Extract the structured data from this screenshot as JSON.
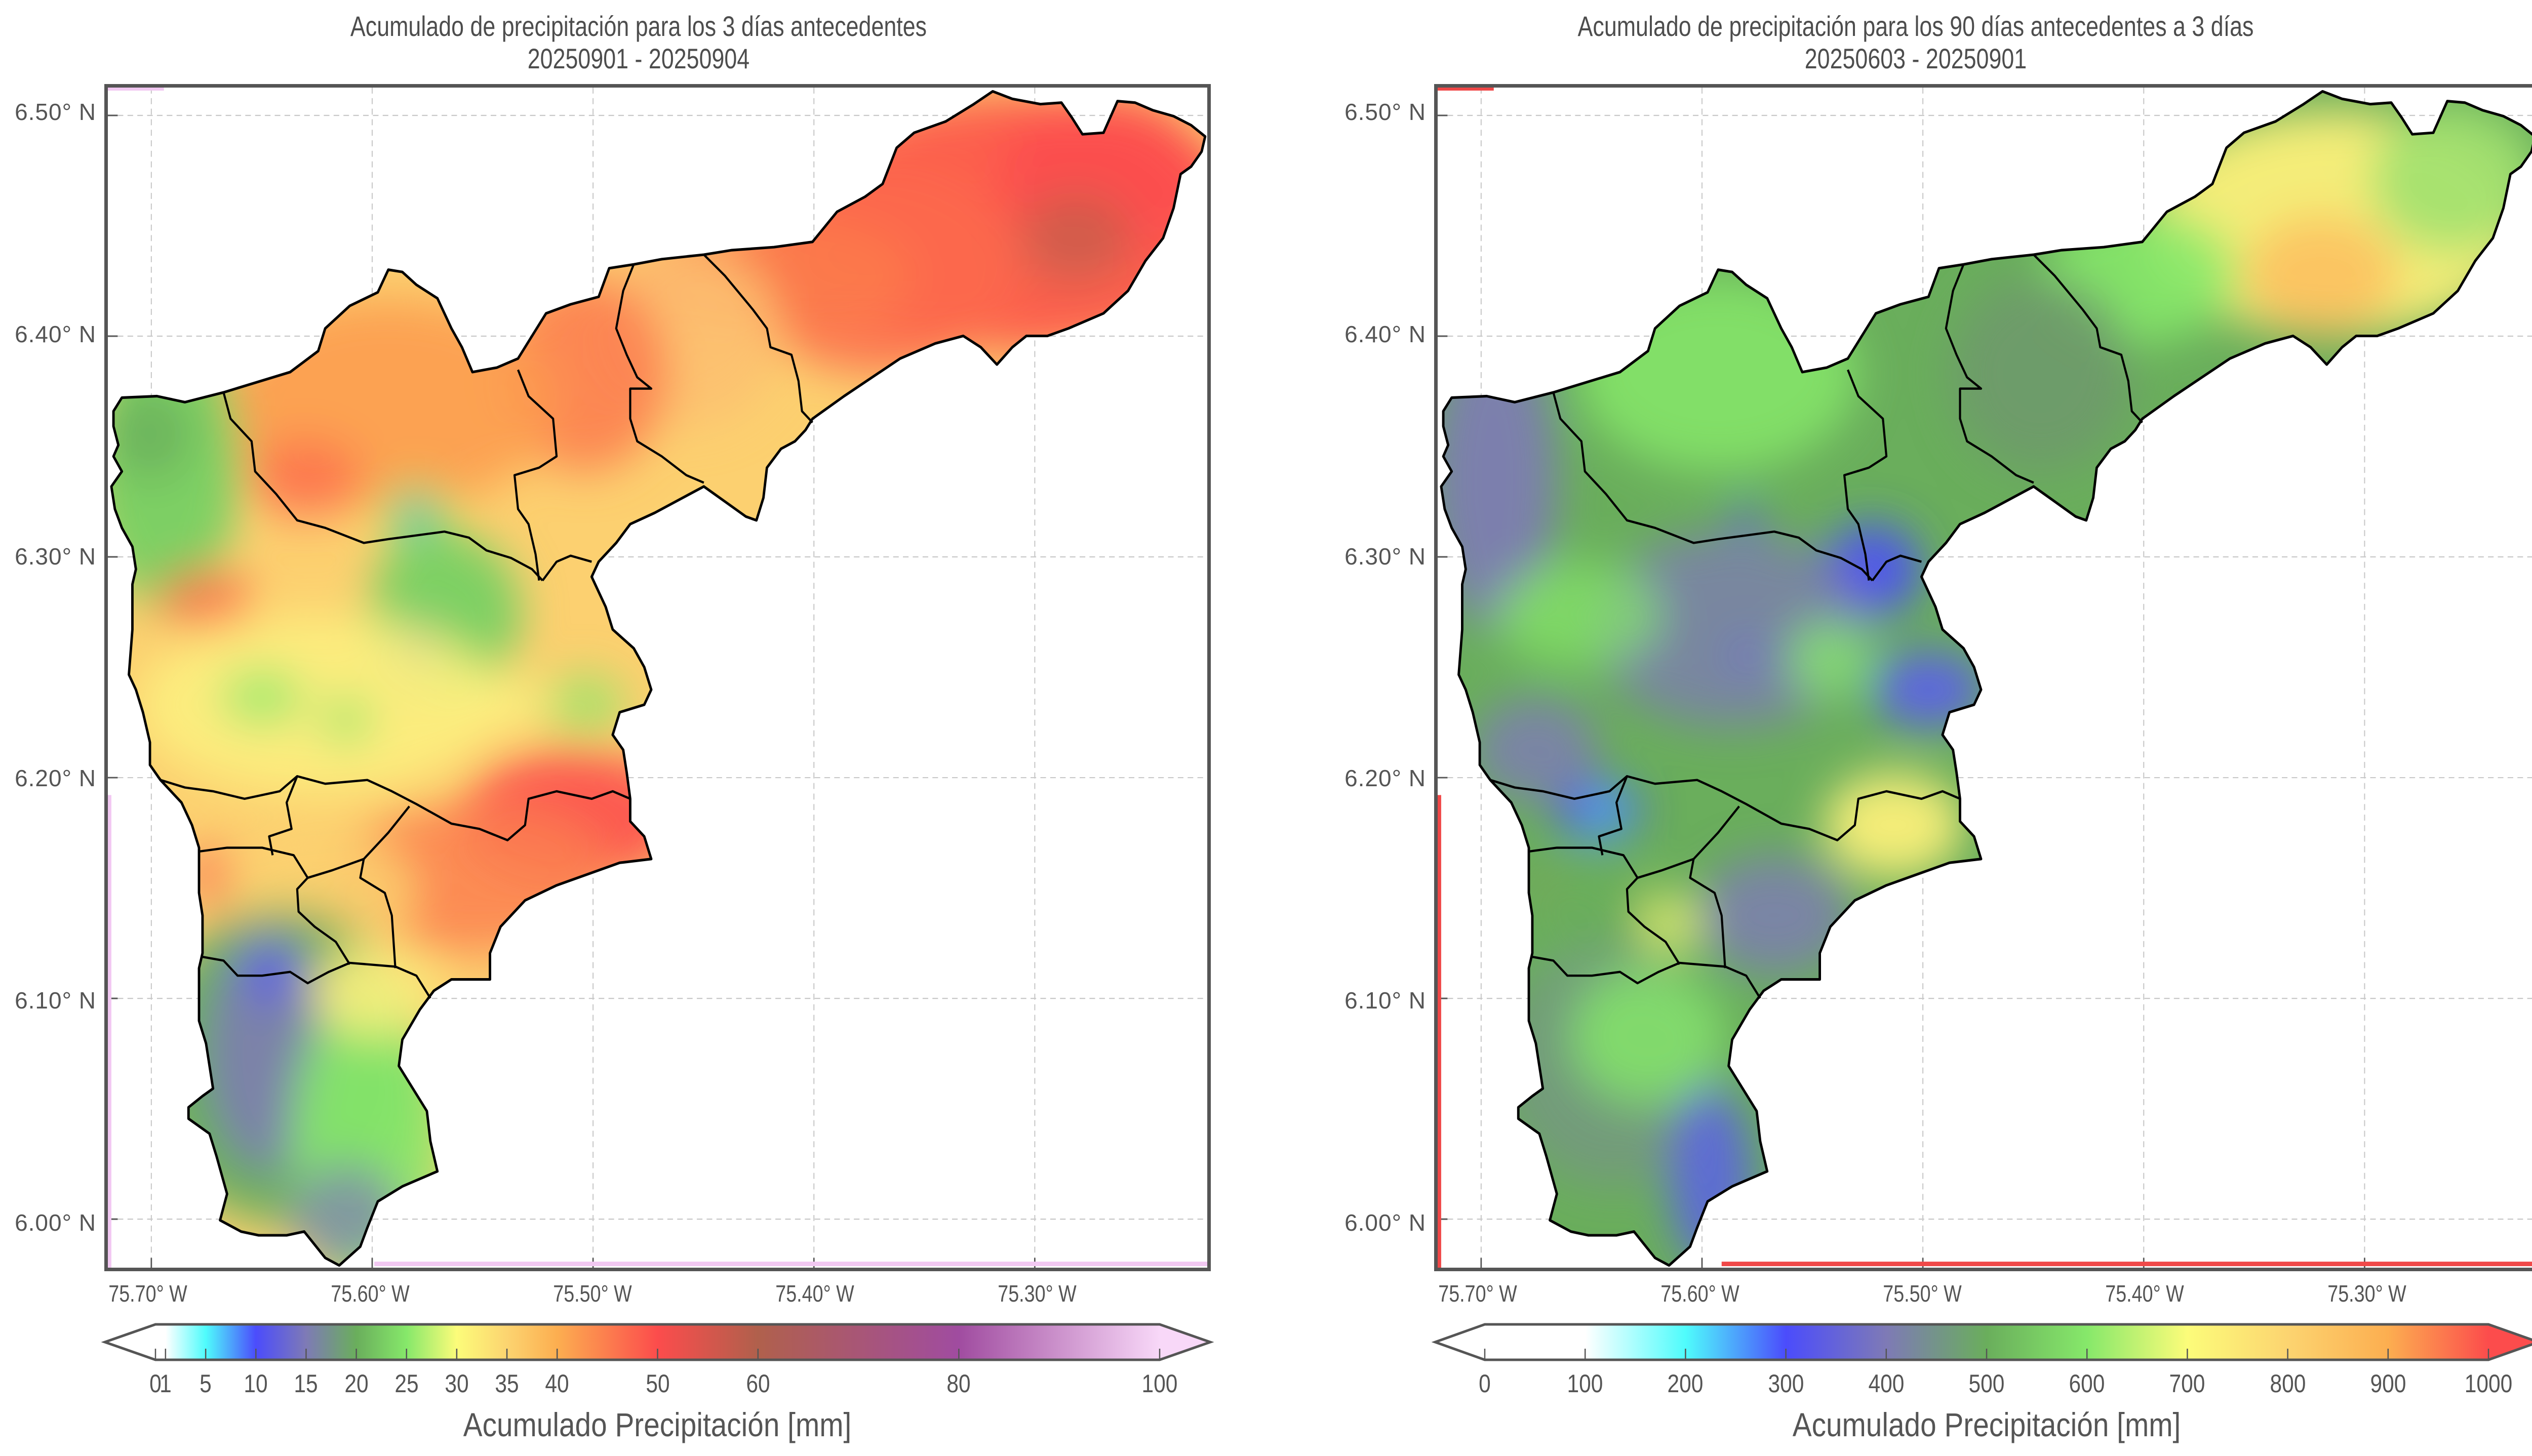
{
  "chart_data": [
    {
      "type": "heatmap",
      "title": "Acumulado de precipitación para los 3 días antecedentes",
      "subtitle": "20250901 - 20250904",
      "xlabel": "",
      "ylabel": "",
      "x_ticks": [
        "75.70° W",
        "75.60° W",
        "75.50° W",
        "75.40° W",
        "75.30° W"
      ],
      "y_ticks": [
        "6.50° N",
        "6.40° N",
        "6.30° N",
        "6.20° N",
        "6.10° N",
        "6.00° N"
      ],
      "x_tick_values": [
        -75.7,
        -75.6,
        -75.5,
        -75.4,
        -75.3
      ],
      "y_tick_values": [
        6.5,
        6.4,
        6.3,
        6.2,
        6.1,
        6.0
      ],
      "xlim": [
        -75.72,
        -75.22
      ],
      "ylim": [
        5.98,
        6.52
      ],
      "grid": true,
      "colorbar": {
        "label": "Acumulado Precipitación [mm]",
        "ticks": [
          "0",
          "1",
          "5",
          "10",
          "15",
          "20",
          "25",
          "30",
          "35",
          "40",
          "50",
          "60",
          "80",
          "100"
        ],
        "tick_values": [
          0,
          1,
          5,
          10,
          15,
          20,
          25,
          30,
          35,
          40,
          50,
          60,
          80,
          100
        ],
        "range": [
          0,
          100
        ],
        "extend": "both",
        "colors": [
          {
            "value": 0,
            "color": "#ffffff"
          },
          {
            "value": 1,
            "color": "#ffffff"
          },
          {
            "value": 5,
            "color": "#4ffcfc"
          },
          {
            "value": 10,
            "color": "#4b4cfc"
          },
          {
            "value": 15,
            "color": "#7e7ab6"
          },
          {
            "value": 20,
            "color": "#6aae5c"
          },
          {
            "value": 25,
            "color": "#86e86a"
          },
          {
            "value": 30,
            "color": "#fcfc7a"
          },
          {
            "value": 35,
            "color": "#fcd470"
          },
          {
            "value": 40,
            "color": "#fcae50"
          },
          {
            "value": 50,
            "color": "#fc4c4c"
          },
          {
            "value": 60,
            "color": "#b0604c"
          },
          {
            "value": 80,
            "color": "#a04ca0"
          },
          {
            "value": 100,
            "color": "#f8d8f8"
          }
        ],
        "under_color": "#ffffff",
        "over_color": "#f8d8f8"
      },
      "regions": [
        {
          "name": "northeast lobe",
          "approx_value_mm": 50
        },
        {
          "name": "north-central",
          "approx_value_mm": 40
        },
        {
          "name": "northwest corner",
          "approx_value_mm": 22
        },
        {
          "name": "central",
          "approx_value_mm": 32
        },
        {
          "name": "central hotspot",
          "approx_value_mm": 18
        },
        {
          "name": "south-east central",
          "approx_value_mm": 48
        },
        {
          "name": "southern lobe",
          "approx_value_mm": 17
        }
      ]
    },
    {
      "type": "heatmap",
      "title": "Acumulado de precipitación para los 90 días antecedentes a 3 días",
      "subtitle": "20250603 - 20250901",
      "xlabel": "",
      "ylabel": "",
      "x_ticks": [
        "75.70° W",
        "75.60° W",
        "75.50° W",
        "75.40° W",
        "75.30° W"
      ],
      "y_ticks": [
        "6.50° N",
        "6.40° N",
        "6.30° N",
        "6.20° N",
        "6.10° N",
        "6.00° N"
      ],
      "x_tick_values": [
        -75.7,
        -75.6,
        -75.5,
        -75.4,
        -75.3
      ],
      "y_tick_values": [
        6.5,
        6.4,
        6.3,
        6.2,
        6.1,
        6.0
      ],
      "xlim": [
        -75.72,
        -75.22
      ],
      "ylim": [
        5.98,
        6.52
      ],
      "grid": true,
      "colorbar": {
        "label": "Acumulado Precipitación [mm]",
        "ticks": [
          "0",
          "100",
          "200",
          "300",
          "400",
          "500",
          "600",
          "700",
          "800",
          "900",
          "1000"
        ],
        "tick_values": [
          0,
          100,
          200,
          300,
          400,
          500,
          600,
          700,
          800,
          900,
          1000
        ],
        "range": [
          0,
          1000
        ],
        "extend": "both",
        "colors": [
          {
            "value": 0,
            "color": "#ffffff"
          },
          {
            "value": 100,
            "color": "#ffffff"
          },
          {
            "value": 200,
            "color": "#4ffcfc"
          },
          {
            "value": 300,
            "color": "#4b4cfc"
          },
          {
            "value": 400,
            "color": "#7e7ab6"
          },
          {
            "value": 500,
            "color": "#6aae5c"
          },
          {
            "value": 600,
            "color": "#86e86a"
          },
          {
            "value": 700,
            "color": "#fcfc7a"
          },
          {
            "value": 800,
            "color": "#fcd470"
          },
          {
            "value": 900,
            "color": "#fcae50"
          },
          {
            "value": 1000,
            "color": "#fc4c4c"
          }
        ],
        "under_color": "#ffffff",
        "over_color": "#fc4c4c"
      },
      "regions": [
        {
          "name": "northeast lobe",
          "approx_value_mm": 720
        },
        {
          "name": "north-central",
          "approx_value_mm": 580
        },
        {
          "name": "west",
          "approx_value_mm": 430
        },
        {
          "name": "central",
          "approx_value_mm": 380
        },
        {
          "name": "south-east central",
          "approx_value_mm": 700
        },
        {
          "name": "southern lobe",
          "approx_value_mm": 520
        },
        {
          "name": "west edge spot",
          "approx_value_mm": 1000
        }
      ]
    }
  ]
}
